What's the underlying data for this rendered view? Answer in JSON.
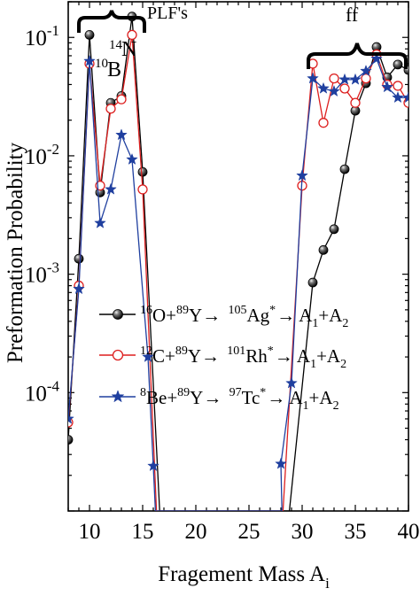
{
  "chart_data": {
    "type": "line",
    "title": "",
    "xlabel_main": "Fragement Mass A",
    "xlabel_sub": "i",
    "ylabel": "Preformation Probability",
    "xlim": [
      8,
      40
    ],
    "ylim": [
      1e-05,
      0.2
    ],
    "yscale": "log",
    "x_ticks": [
      10,
      15,
      20,
      25,
      30,
      35,
      40
    ],
    "y_ticks": [
      {
        "value": 0.0001,
        "base": "10",
        "exp": "-4"
      },
      {
        "value": 0.001,
        "base": "10",
        "exp": "-3"
      },
      {
        "value": 0.01,
        "base": "10",
        "exp": "-2"
      },
      {
        "value": 0.1,
        "base": "10",
        "exp": "-1"
      }
    ],
    "annotations": [
      {
        "text": "PLF's",
        "anchor": "top-left"
      },
      {
        "text": "ff",
        "anchor": "top-right"
      },
      {
        "text": "14",
        "kind": "sup"
      },
      {
        "text": "N",
        "kind": "main"
      },
      {
        "text": "10",
        "kind": "sup"
      },
      {
        "text": "B",
        "kind": "main"
      }
    ],
    "series": [
      {
        "name": "16O+89Y→105Ag*→A1+A2",
        "legend_parts": [
          "16",
          "O+",
          "89",
          "Y→ ",
          "105",
          "Ag",
          "*",
          "→ A",
          "1",
          "+A",
          "2"
        ],
        "color": "#000000",
        "marker": "filled-circle",
        "points": [
          [
            8,
            4e-05
          ],
          [
            9,
            0.00135
          ],
          [
            10,
            0.105
          ],
          [
            11,
            0.0049
          ],
          [
            12,
            0.028
          ],
          [
            13,
            0.032
          ],
          [
            14,
            0.15
          ],
          [
            15,
            0.0073
          ],
          [
            16.6,
            1e-05
          ],
          [
            28.8,
            1e-05
          ],
          [
            31,
            0.00085
          ],
          [
            32,
            0.0016
          ],
          [
            33,
            0.0024
          ],
          [
            34,
            0.0077
          ],
          [
            35,
            0.024
          ],
          [
            36,
            0.041
          ],
          [
            37,
            0.083
          ],
          [
            38,
            0.046
          ],
          [
            39,
            0.059
          ],
          [
            40,
            0.053
          ]
        ]
      },
      {
        "name": "12C+89Y→101Rh*→A1+A2",
        "legend_parts": [
          "12",
          "C+",
          "89",
          "Y→ ",
          "101",
          "Rh",
          "*",
          "→ A",
          "1",
          "+A",
          "2"
        ],
        "color": "#dd1f1f",
        "marker": "open-circle",
        "points": [
          [
            8,
            5.6e-05
          ],
          [
            9,
            0.0008
          ],
          [
            10,
            0.06
          ],
          [
            11,
            0.0056
          ],
          [
            12,
            0.025
          ],
          [
            13,
            0.03
          ],
          [
            14,
            0.105
          ],
          [
            15,
            0.0052
          ],
          [
            16.3,
            1e-05
          ],
          [
            28.2,
            1e-05
          ],
          [
            30,
            0.0056
          ],
          [
            31,
            0.06
          ],
          [
            32,
            0.019
          ],
          [
            33,
            0.045
          ],
          [
            34,
            0.037
          ],
          [
            35,
            0.028
          ],
          [
            36,
            0.045
          ],
          [
            37,
            0.072
          ],
          [
            38,
            0.04
          ],
          [
            39,
            0.039
          ],
          [
            40,
            0.028
          ]
        ]
      },
      {
        "name": "8Be+89Y→97Tc*→A1+A2",
        "legend_parts": [
          "8",
          "Be+",
          "89",
          "Y→ ",
          "97",
          "Tc",
          "*",
          "→ A",
          "1",
          "+A",
          "2"
        ],
        "color": "#1f3f9f",
        "marker": "star",
        "points": [
          [
            8,
            6e-05
          ],
          [
            9,
            0.00075
          ],
          [
            10,
            0.063
          ],
          [
            11,
            0.0027
          ],
          [
            12,
            0.0052
          ],
          [
            13,
            0.015
          ],
          [
            14,
            0.0093
          ],
          [
            15.5,
            0.0002
          ],
          [
            16,
            2.4e-05
          ],
          [
            16.2,
            1e-05
          ],
          [
            28.1,
            1e-05
          ],
          [
            28,
            2.5e-05
          ],
          [
            29,
            0.00012
          ],
          [
            30,
            0.0068
          ],
          [
            31,
            0.045
          ],
          [
            32,
            0.037
          ],
          [
            33,
            0.035
          ],
          [
            34,
            0.044
          ],
          [
            35,
            0.044
          ],
          [
            36,
            0.052
          ],
          [
            37,
            0.066
          ],
          [
            38,
            0.038
          ],
          [
            39,
            0.031
          ],
          [
            40,
            0.031
          ]
        ]
      }
    ]
  }
}
